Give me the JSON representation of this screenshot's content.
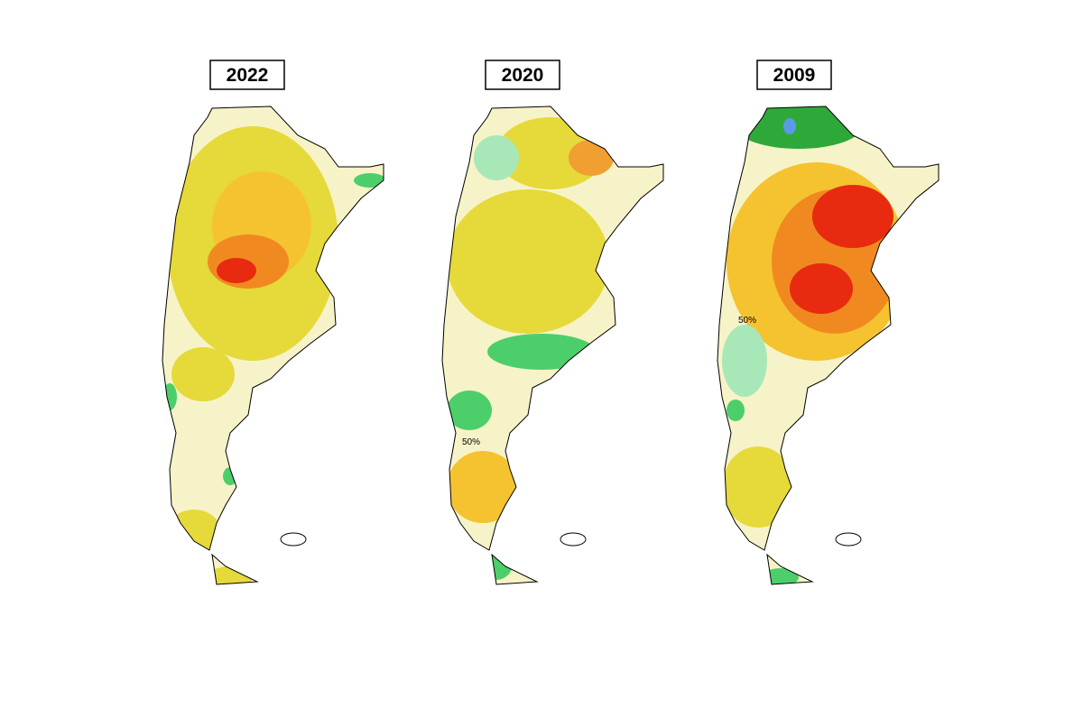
{
  "maps": [
    {
      "title": "2022",
      "contour_labels": []
    },
    {
      "title": "2020",
      "contour_labels": [
        "50%"
      ]
    },
    {
      "title": "2009",
      "contour_labels": [
        "50%"
      ]
    }
  ]
}
